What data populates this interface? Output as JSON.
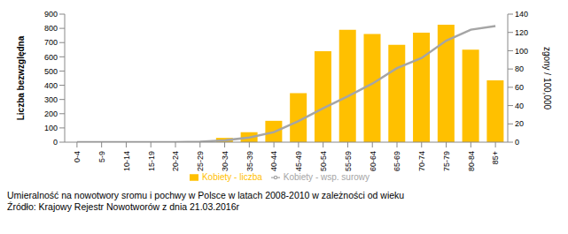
{
  "chart_data": {
    "type": "bar",
    "caption": "Umieralność na nowotwory sromu i pochwy w Polsce w latach 2008-2010 w zależności od wieku",
    "source": "Źródło: Krajowy Rejestr Nowotworów z dnia 21.03.2016r",
    "ylabel": "Liczba bezwzględna",
    "y2label": "zgony / 100,000",
    "categories": [
      "0-4",
      "5-9",
      "10-14",
      "15-19",
      "20-24",
      "25-29",
      "30-34",
      "35-39",
      "40-44",
      "45-49",
      "50-54",
      "55-59",
      "60-64",
      "65-69",
      "70-74",
      "75-79",
      "80-84",
      "85+"
    ],
    "series": [
      {
        "name": "Kobiety - liczba",
        "type": "bar",
        "color": "#ffc000",
        "values": [
          0,
          0,
          0,
          0,
          2,
          5,
          30,
          70,
          150,
          345,
          640,
          790,
          760,
          685,
          770,
          825,
          650,
          435
        ]
      },
      {
        "name": "Kobiety - wsp. surowy",
        "type": "line",
        "axis": "y2",
        "color": "#a5a5a5",
        "marker": "none",
        "values": [
          0,
          0,
          0,
          0,
          0,
          0.5,
          2,
          5,
          11,
          23,
          37,
          50,
          64,
          81,
          92,
          111,
          123,
          127
        ]
      }
    ],
    "ylim": [
      0,
      900
    ],
    "yticks": [
      0,
      100,
      200,
      300,
      400,
      500,
      600,
      700,
      800,
      900
    ],
    "y2lim": [
      0,
      140
    ],
    "y2ticks": [
      0,
      20,
      40,
      60,
      80,
      100,
      120,
      140
    ],
    "grid": false,
    "legend": "bottom"
  }
}
